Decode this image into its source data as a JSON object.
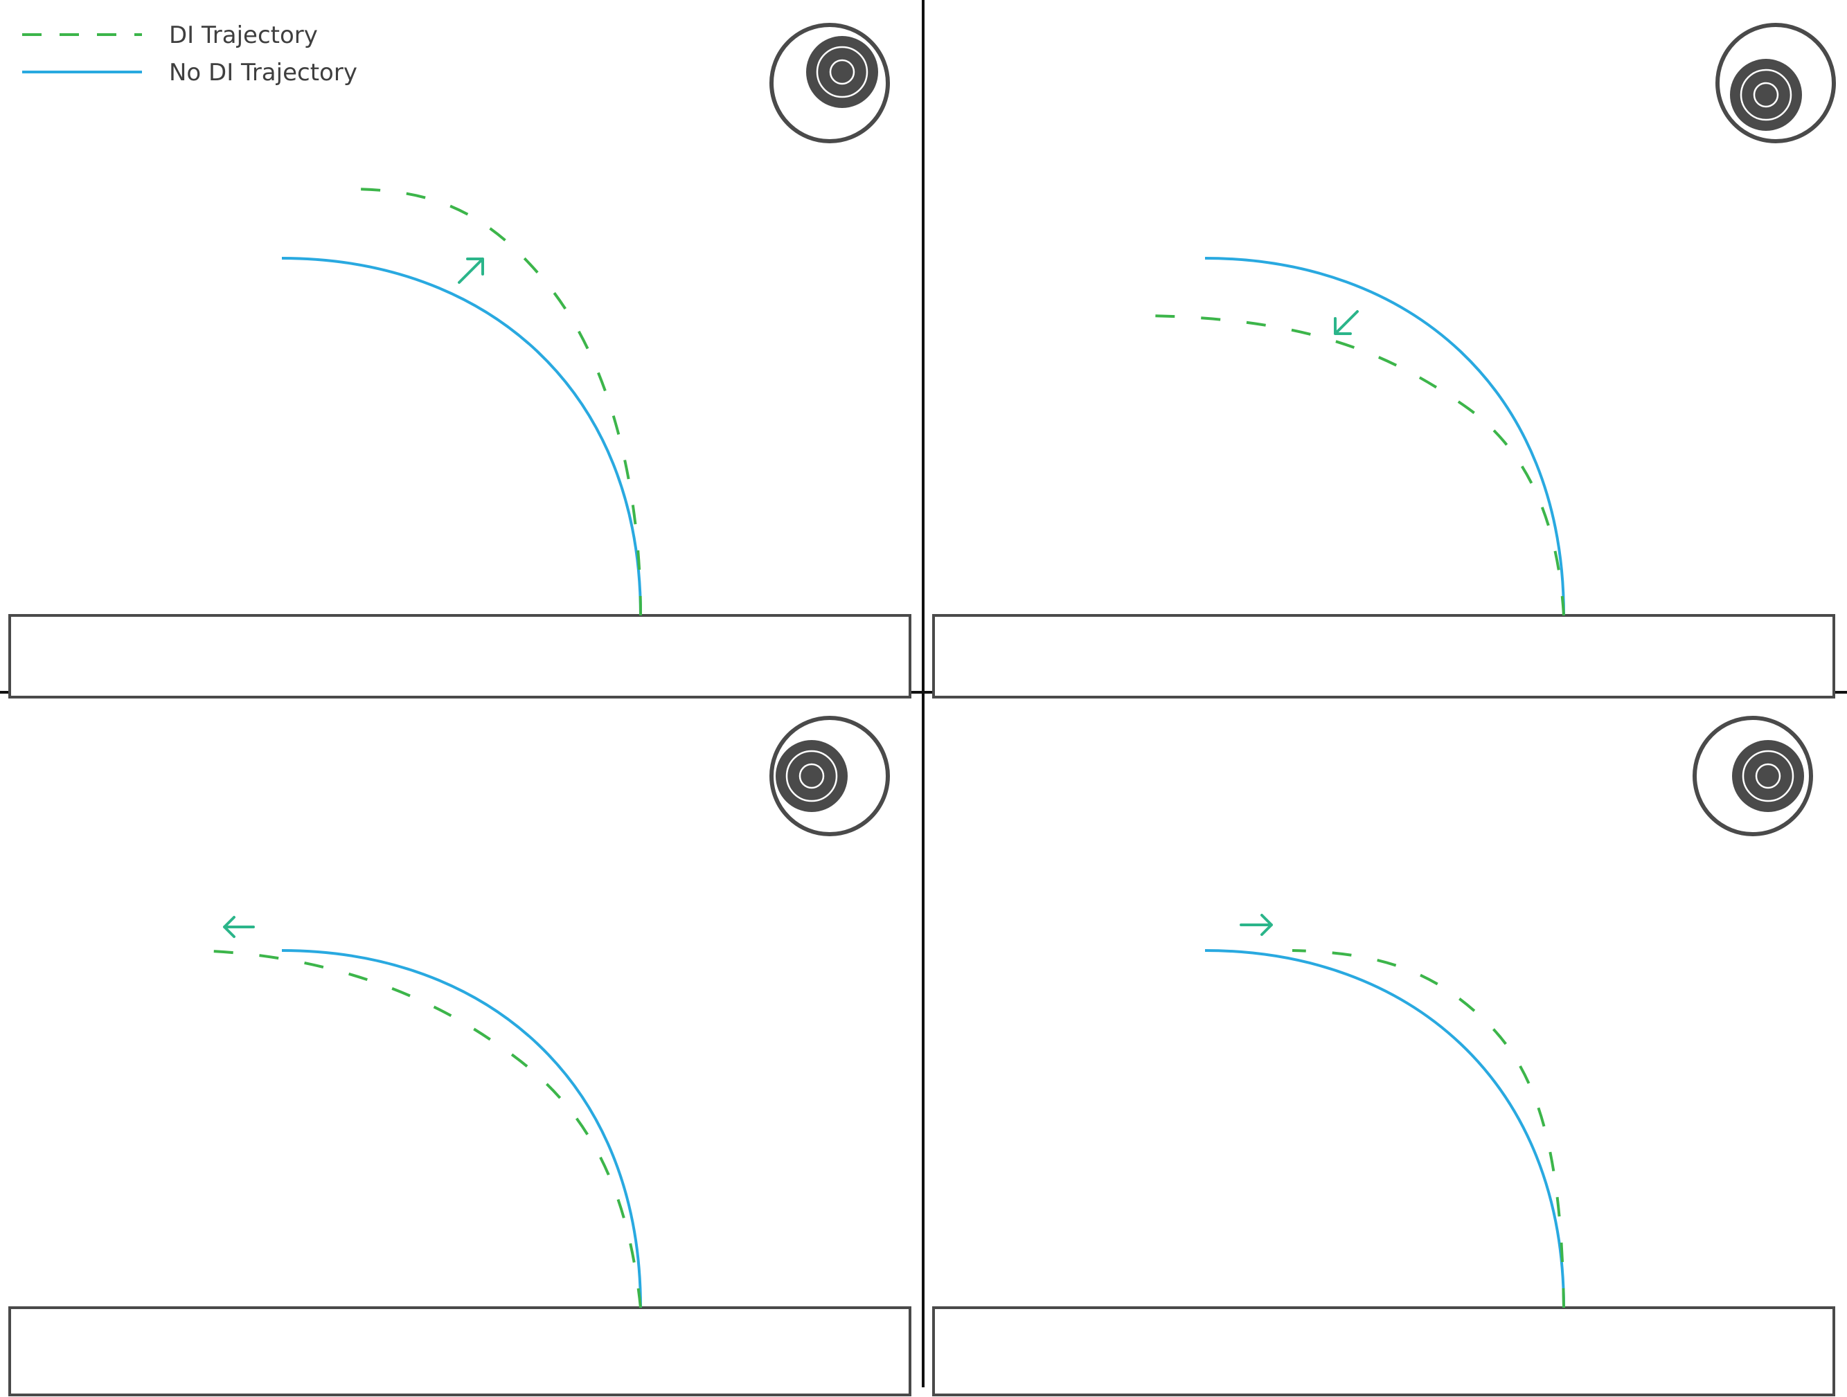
{
  "legend": {
    "di_label": "DI Trajectory",
    "no_di_label": "No DI Trajectory"
  },
  "colors": {
    "di": "#3cb54a",
    "no_di": "#29a9e0",
    "arrow": "#2bb58a",
    "stick": "#4a4a4a",
    "frame": "#111111"
  },
  "panels": [
    {
      "id": "top-left",
      "di_direction": "up-right",
      "di_arrow_icon": "arrow-up-right-icon",
      "stick_tilt": "up-right"
    },
    {
      "id": "top-right",
      "di_direction": "down-left",
      "di_arrow_icon": "arrow-down-left-icon",
      "stick_tilt": "down-left"
    },
    {
      "id": "bottom-left",
      "di_direction": "left",
      "di_arrow_icon": "arrow-left-icon",
      "stick_tilt": "left"
    },
    {
      "id": "bottom-right",
      "di_direction": "right",
      "di_arrow_icon": "arrow-right-icon",
      "stick_tilt": "right"
    }
  ]
}
